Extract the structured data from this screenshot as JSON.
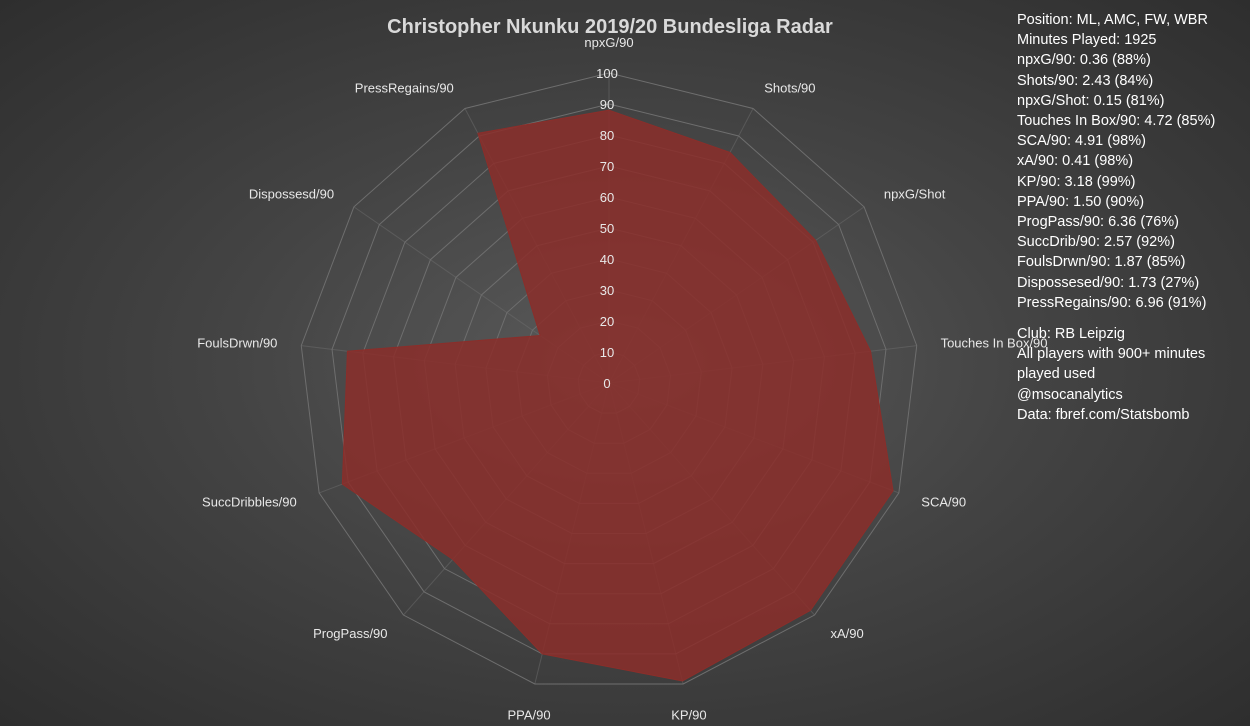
{
  "chart_data": {
    "type": "radar",
    "title": "Christopher Nkunku 2019/20 Bundesliga Radar",
    "axes": [
      "npxG/90",
      "Shots/90",
      "npxG/Shot",
      "Touches In Box/90",
      "SCA/90",
      "xA/90",
      "KP/90",
      "PPA/90",
      "ProgPass/90",
      "SuccDribbles/90",
      "FoulsDrwn/90",
      "Dispossesd/90",
      "PressRegains/90"
    ],
    "values": [
      88,
      84,
      81,
      85,
      98,
      98,
      99,
      90,
      76,
      92,
      85,
      27,
      91
    ],
    "rlim": [
      0,
      100
    ],
    "ticks": [
      "0",
      "10",
      "20",
      "30",
      "40",
      "50",
      "60",
      "70",
      "80",
      "90",
      "100"
    ],
    "fill_color": "#8b2e2a",
    "grid_color": "#6e6e6e"
  },
  "info": {
    "position": "Position: ML, AMC, FW, WBR",
    "minutes": "Minutes Played: 1925",
    "stats": [
      "npxG/90: 0.36 (88%)",
      "Shots/90: 2.43 (84%)",
      "npxG/Shot: 0.15 (81%)",
      "Touches In Box/90: 4.72 (85%)",
      "SCA/90: 4.91 (98%)",
      "xA/90: 0.41 (98%)",
      "KP/90: 3.18 (99%)",
      "PPA/90: 1.50 (90%)",
      "ProgPass/90: 6.36 (76%)",
      "SuccDrib/90: 2.57 (92%)",
      "FoulsDrwn/90: 1.87 (85%)",
      "Dispossesed/90: 1.73 (27%)",
      "PressRegains/90: 6.96 (91%)"
    ],
    "club": "Club: RB Leipzig",
    "note": "All players with 900+ minutes played used",
    "handle": "@msocanalytics",
    "source": "Data: fbref.com/Statsbomb"
  }
}
